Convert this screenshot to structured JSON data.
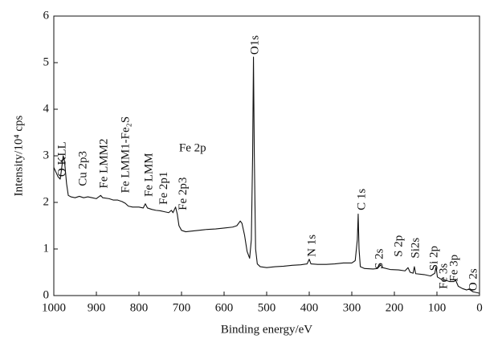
{
  "chart_data": {
    "type": "line",
    "x_label": "Binding energy/eV",
    "y_label": "Intensity/10⁴ cps",
    "xlim": [
      1000,
      0
    ],
    "ylim": [
      0,
      6
    ],
    "xticks": [
      1000,
      900,
      800,
      700,
      600,
      500,
      400,
      300,
      200,
      100,
      0
    ],
    "yticks": [
      0,
      1,
      2,
      3,
      4,
      5,
      6
    ],
    "grid": false,
    "series": [
      {
        "color": "#111111",
        "x": [
          1000,
          995,
          990,
          985,
          982,
          978,
          975,
          970,
          966,
          960,
          950,
          940,
          930,
          920,
          910,
          900,
          890,
          885,
          870,
          860,
          850,
          840,
          832,
          825,
          815,
          800,
          790,
          785,
          780,
          770,
          760,
          750,
          740,
          730,
          724,
          720,
          714,
          710,
          706,
          700,
          690,
          680,
          660,
          640,
          620,
          600,
          580,
          570,
          562,
          558,
          552,
          546,
          540,
          536,
          533,
          531,
          529,
          526,
          522,
          515,
          500,
          480,
          460,
          440,
          420,
          405,
          400,
          396,
          380,
          360,
          340,
          320,
          300,
          292,
          287,
          285,
          283,
          280,
          270,
          250,
          240,
          232,
          228,
          210,
          190,
          175,
          168,
          163,
          156,
          153,
          150,
          130,
          115,
          105,
          102,
          99,
          90,
          80,
          70,
          60,
          56,
          50,
          40,
          30,
          25,
          15,
          5,
          0
        ],
        "values": [
          2.75,
          2.65,
          2.55,
          2.5,
          2.7,
          3.0,
          2.9,
          2.4,
          2.15,
          2.12,
          2.1,
          2.13,
          2.1,
          2.12,
          2.1,
          2.08,
          2.15,
          2.1,
          2.08,
          2.05,
          2.05,
          2.02,
          1.98,
          1.92,
          1.9,
          1.9,
          1.88,
          1.97,
          1.88,
          1.85,
          1.83,
          1.82,
          1.8,
          1.78,
          1.83,
          1.78,
          1.9,
          1.75,
          1.5,
          1.4,
          1.37,
          1.38,
          1.4,
          1.42,
          1.43,
          1.45,
          1.47,
          1.5,
          1.6,
          1.55,
          1.3,
          0.95,
          0.8,
          1.2,
          3.0,
          5.12,
          3.0,
          1.0,
          0.68,
          0.62,
          0.6,
          0.62,
          0.63,
          0.65,
          0.66,
          0.68,
          0.78,
          0.68,
          0.67,
          0.67,
          0.68,
          0.7,
          0.7,
          0.75,
          1.2,
          1.75,
          1.0,
          0.62,
          0.58,
          0.57,
          0.58,
          0.66,
          0.6,
          0.56,
          0.55,
          0.53,
          0.6,
          0.5,
          0.48,
          0.62,
          0.47,
          0.45,
          0.42,
          0.48,
          0.62,
          0.4,
          0.35,
          0.33,
          0.3,
          0.3,
          0.33,
          0.2,
          0.15,
          0.12,
          0.14,
          0.08,
          0.06,
          0.05
        ]
      }
    ],
    "annotations": [
      {
        "text": "O KLL",
        "x": 979,
        "y": 2.55,
        "rotate": true
      },
      {
        "text": "Cu 2p3",
        "x": 930,
        "y": 2.35,
        "rotate": true
      },
      {
        "text": "Fe LMM2",
        "x": 881,
        "y": 2.3,
        "rotate": true
      },
      {
        "text": "Fe LMM1-Fe₂S",
        "x": 830,
        "y": 2.2,
        "rotate": true
      },
      {
        "text": "Fe LMM",
        "x": 775,
        "y": 2.12,
        "rotate": true
      },
      {
        "text": "Fe 2p1",
        "x": 740,
        "y": 1.95,
        "rotate": true
      },
      {
        "text": "Fe 2p3",
        "x": 695,
        "y": 1.83,
        "rotate": true
      },
      {
        "text": "Fe 2p",
        "x": 674,
        "y": 3.15,
        "rotate": false
      },
      {
        "text": "O1s",
        "x": 526,
        "y": 5.17,
        "rotate": true
      },
      {
        "text": "N 1s",
        "x": 392,
        "y": 0.83,
        "rotate": true
      },
      {
        "text": "C 1s",
        "x": 275,
        "y": 1.83,
        "rotate": true
      },
      {
        "text": "S 2s",
        "x": 234,
        "y": 0.57,
        "rotate": true
      },
      {
        "text": "S 2p",
        "x": 189,
        "y": 0.83,
        "rotate": true
      },
      {
        "text": "Si2s",
        "x": 149,
        "y": 0.8,
        "rotate": true
      },
      {
        "text": "Si 2p",
        "x": 106,
        "y": 0.53,
        "rotate": true
      },
      {
        "text": "Fe 3s",
        "x": 83,
        "y": 0.14,
        "rotate": true
      },
      {
        "text": "Fe 3p",
        "x": 58,
        "y": 0.3,
        "rotate": true
      },
      {
        "text": "O 2s",
        "x": 13,
        "y": 0.1,
        "rotate": true
      }
    ]
  }
}
